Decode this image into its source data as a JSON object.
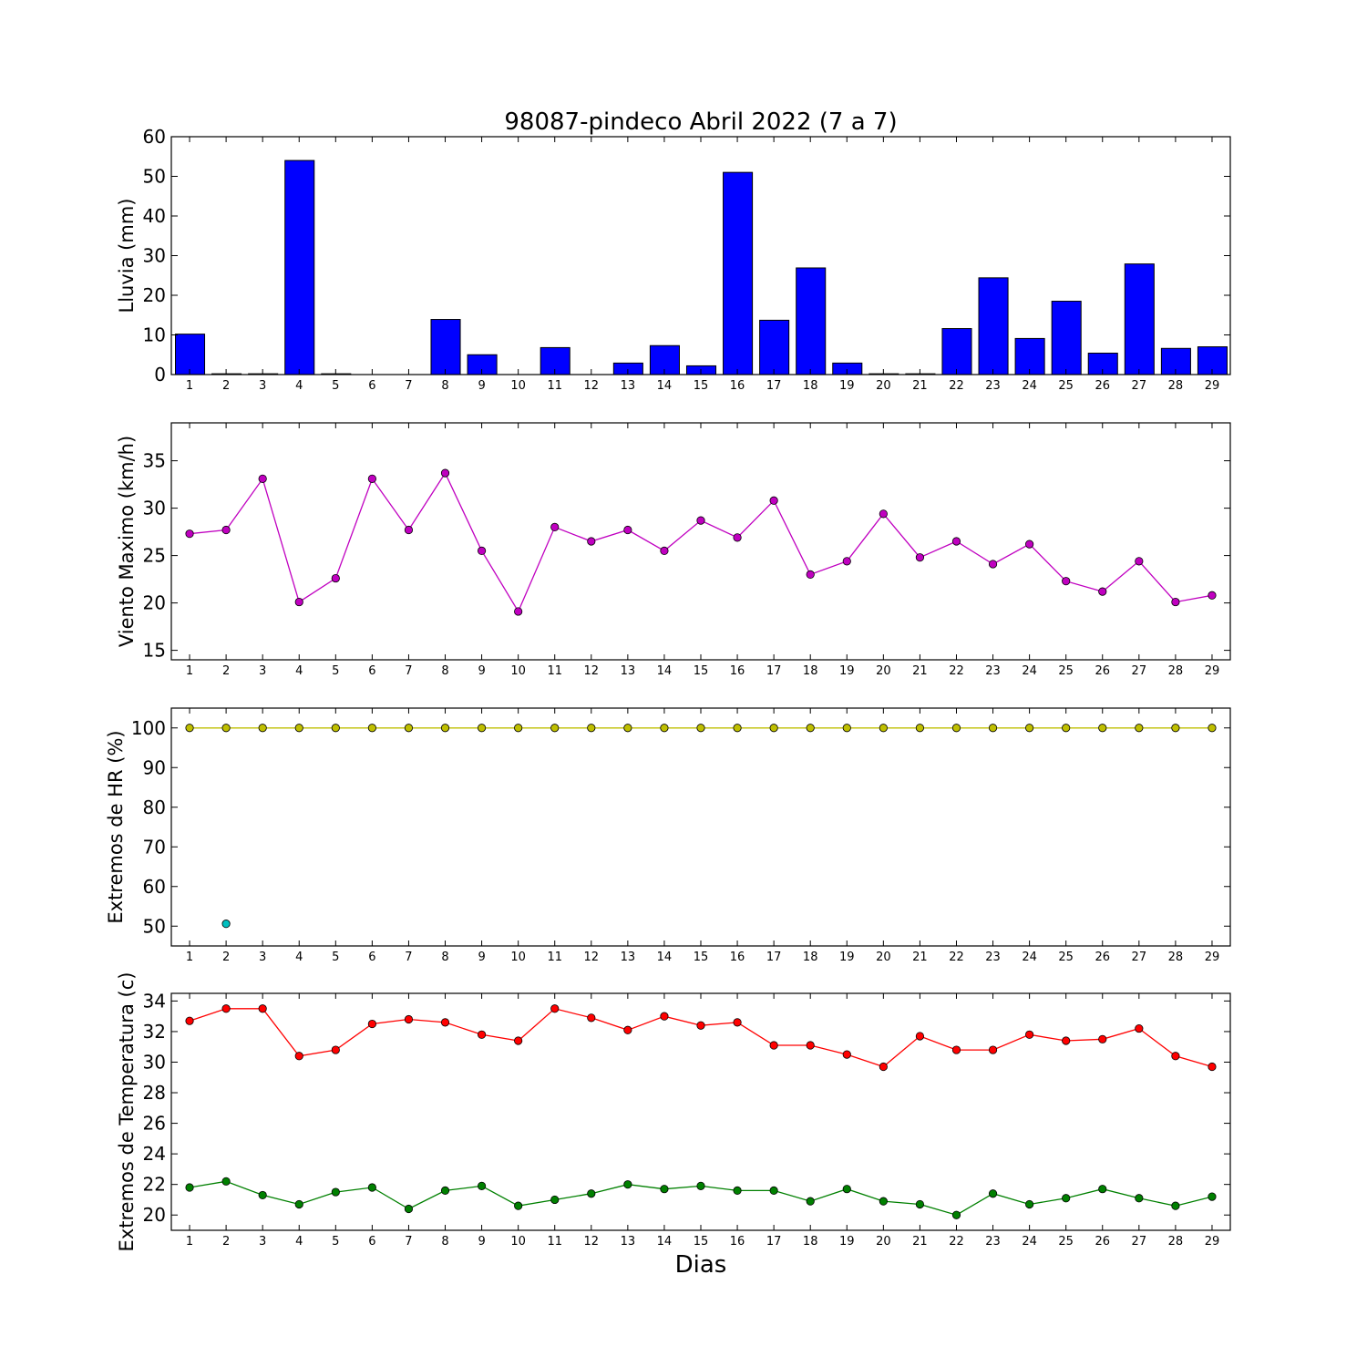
{
  "figure": {
    "title": "98087-pindeco Abril 2022  (7 a 7)",
    "xlabel": "Dias"
  },
  "chart_data": [
    {
      "type": "bar",
      "ylabel": "Lluvia (mm)",
      "ylim": [
        0,
        60
      ],
      "yticks": [
        0,
        10,
        20,
        30,
        40,
        50,
        60
      ],
      "categories": [
        "1",
        "2",
        "3",
        "4",
        "5",
        "6",
        "7",
        "8",
        "9",
        "10",
        "11",
        "12",
        "13",
        "14",
        "15",
        "16",
        "17",
        "18",
        "19",
        "20",
        "21",
        "22",
        "23",
        "24",
        "25",
        "26",
        "27",
        "28",
        "29"
      ],
      "series": [
        {
          "values": [
            10.2,
            0.2,
            0.2,
            54.0,
            0.2,
            0,
            0,
            13.9,
            5.0,
            0,
            6.8,
            0,
            2.9,
            7.3,
            2.2,
            51.0,
            13.7,
            26.9,
            2.9,
            0.2,
            0.2,
            11.6,
            24.4,
            9.1,
            18.5,
            5.4,
            27.9,
            6.6,
            7.0
          ],
          "color": "#0000ff"
        }
      ],
      "grid": false
    },
    {
      "type": "line",
      "ylabel": "Viento Maximo (km/h)",
      "ylim": [
        14,
        39
      ],
      "yticks": [
        15,
        20,
        25,
        30,
        35
      ],
      "x": [
        1,
        2,
        3,
        4,
        5,
        6,
        7,
        8,
        9,
        10,
        11,
        12,
        13,
        14,
        15,
        16,
        17,
        18,
        19,
        20,
        21,
        22,
        23,
        24,
        25,
        26,
        27,
        28,
        29
      ],
      "series": [
        {
          "values": [
            27.3,
            27.7,
            33.1,
            20.1,
            22.6,
            33.1,
            27.7,
            33.7,
            25.5,
            19.1,
            28.0,
            26.5,
            27.7,
            25.5,
            28.7,
            26.9,
            30.8,
            23.0,
            24.4,
            29.4,
            24.8,
            26.5,
            24.1,
            26.2,
            22.3,
            21.2,
            24.4,
            20.1,
            20.8
          ],
          "color": "#c000c0"
        }
      ],
      "grid": false
    },
    {
      "type": "line",
      "ylabel": "Extremos de HR (%)",
      "ylim": [
        45,
        105
      ],
      "yticks": [
        50,
        60,
        70,
        80,
        90,
        100
      ],
      "x": [
        1,
        2,
        3,
        4,
        5,
        6,
        7,
        8,
        9,
        10,
        11,
        12,
        13,
        14,
        15,
        16,
        17,
        18,
        19,
        20,
        21,
        22,
        23,
        24,
        25,
        26,
        27,
        28,
        29
      ],
      "series": [
        {
          "values": [
            100,
            100,
            100,
            100,
            100,
            100,
            100,
            100,
            100,
            100,
            100,
            100,
            100,
            100,
            100,
            100,
            100,
            100,
            100,
            100,
            100,
            100,
            100,
            100,
            100,
            100,
            100,
            100,
            100
          ],
          "color": "#bfbf00"
        },
        {
          "values": [
            null,
            50.6,
            null,
            null,
            null,
            null,
            null,
            null,
            null,
            null,
            null,
            null,
            null,
            null,
            null,
            null,
            null,
            null,
            null,
            null,
            null,
            null,
            null,
            null,
            null,
            null,
            null,
            null,
            null
          ],
          "color": "#00bfbf"
        }
      ],
      "grid": false
    },
    {
      "type": "line",
      "ylabel": "Extremos de Temperatura (c)",
      "ylim": [
        19,
        34.5
      ],
      "yticks": [
        20,
        22,
        24,
        26,
        28,
        30,
        32,
        34
      ],
      "x": [
        1,
        2,
        3,
        4,
        5,
        6,
        7,
        8,
        9,
        10,
        11,
        12,
        13,
        14,
        15,
        16,
        17,
        18,
        19,
        20,
        21,
        22,
        23,
        24,
        25,
        26,
        27,
        28,
        29
      ],
      "series": [
        {
          "values": [
            32.7,
            33.5,
            33.5,
            30.4,
            30.8,
            32.5,
            32.8,
            32.6,
            31.8,
            31.4,
            33.5,
            32.9,
            32.1,
            33.0,
            32.4,
            32.6,
            31.1,
            31.1,
            30.5,
            29.7,
            31.7,
            30.8,
            30.8,
            31.8,
            31.4,
            31.5,
            32.2,
            30.4,
            29.7
          ],
          "color": "#ff0000"
        },
        {
          "values": [
            21.8,
            22.2,
            21.3,
            20.7,
            21.5,
            21.8,
            20.4,
            21.6,
            21.9,
            20.6,
            21.0,
            21.4,
            22.0,
            21.7,
            21.9,
            21.6,
            21.6,
            20.9,
            21.7,
            20.9,
            20.7,
            20.0,
            21.4,
            20.7,
            21.1,
            21.7,
            21.1,
            20.6,
            21.2
          ],
          "color": "#008000"
        }
      ],
      "grid": false
    }
  ]
}
